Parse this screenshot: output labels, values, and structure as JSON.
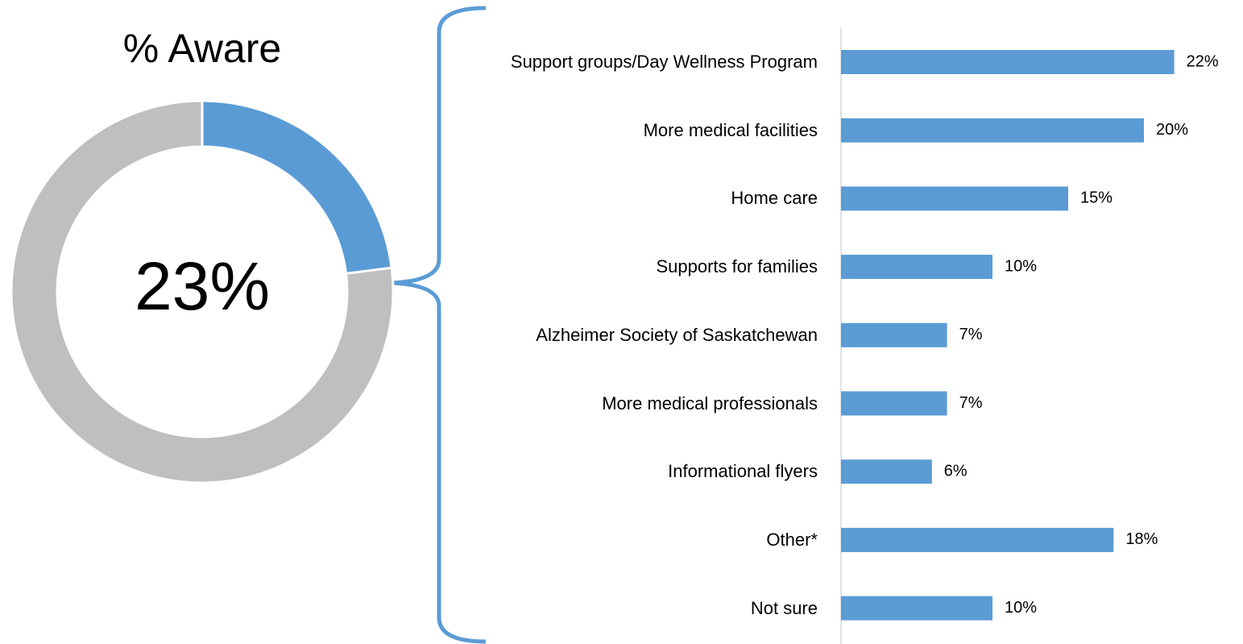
{
  "chart_data": [
    {
      "type": "donut",
      "title": "% Aware",
      "values": [
        23,
        77
      ],
      "value_labels": [
        "23%",
        null
      ],
      "colors": [
        "#5b9bd5",
        "#bfbfbf"
      ]
    },
    {
      "type": "hbar",
      "categories": [
        "Support groups/Day Wellness Program",
        "More medical facilities",
        "Home care",
        "Supports for families",
        "Alzheimer Society of Saskatchewan",
        "More medical professionals",
        "Informational flyers",
        "Other*",
        "Not sure"
      ],
      "values": [
        22,
        20,
        15,
        10,
        7,
        7,
        6,
        18,
        10
      ],
      "value_labels": [
        "22%",
        "20%",
        "15%",
        "10%",
        "7%",
        "7%",
        "6%",
        "18%",
        "10%"
      ],
      "color": "#5b9bd5",
      "xlim": [
        0,
        25
      ]
    }
  ]
}
